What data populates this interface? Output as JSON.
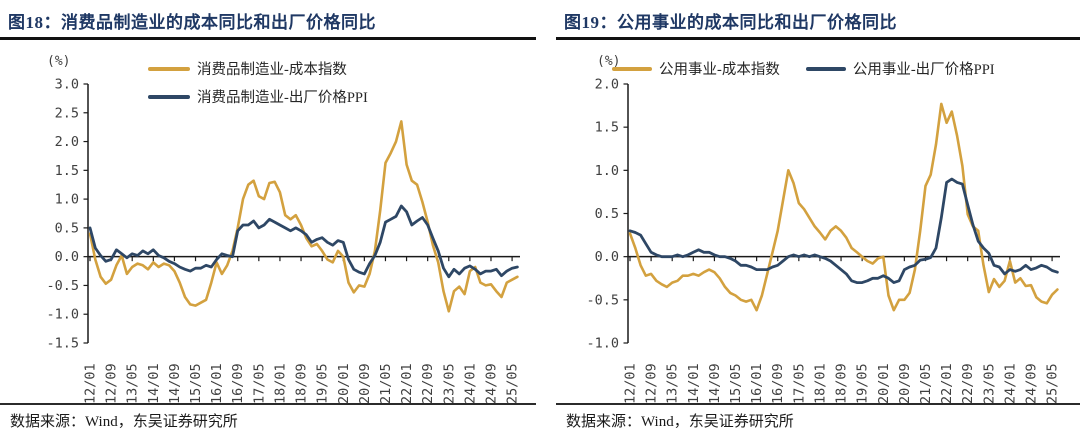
{
  "colors": {
    "gold": "#D3A13F",
    "navy": "#2E4765",
    "title": "#1F3864",
    "axis": "#1a1a1a",
    "tick_text": "#3f3f3f"
  },
  "chart_data": [
    {
      "type": "line",
      "title": "图18：消费品制造业的成本同比和出厂价格同比",
      "percent_label": "(%)",
      "source": "数据来源：Wind，东吴证券研究所",
      "ylim": [
        -1.5,
        3.0
      ],
      "y_tick_step": 0.5,
      "y_ticks": [
        "3.0",
        "2.5",
        "2.0",
        "1.5",
        "1.0",
        "0.5",
        "0.0",
        "-0.5",
        "-1.0",
        "-1.5"
      ],
      "x_tick_labels": [
        "12/01",
        "12/09",
        "13/05",
        "14/01",
        "14/09",
        "15/05",
        "16/01",
        "16/09",
        "17/05",
        "18/01",
        "18/09",
        "19/05",
        "20/01",
        "20/09",
        "21/05",
        "22/01",
        "22/09",
        "23/05",
        "24/01",
        "24/09",
        "25/05"
      ],
      "x_start": "12/01",
      "x_step_months": 2,
      "x_months_span": 163,
      "grid": false,
      "legend_position": "top-center-stacked",
      "series": [
        {
          "name": "消费品制造业-成本指数",
          "color_key": "gold",
          "values": [
            0.4,
            -0.05,
            -0.35,
            -0.47,
            -0.4,
            -0.15,
            0.02,
            -0.3,
            -0.18,
            -0.12,
            -0.15,
            -0.22,
            -0.1,
            -0.18,
            -0.12,
            -0.15,
            -0.25,
            -0.45,
            -0.7,
            -0.83,
            -0.85,
            -0.8,
            -0.75,
            -0.45,
            -0.1,
            -0.3,
            -0.15,
            0.1,
            0.5,
            1.0,
            1.25,
            1.32,
            1.05,
            1.0,
            1.28,
            1.3,
            1.12,
            0.72,
            0.65,
            0.72,
            0.55,
            0.32,
            0.18,
            0.22,
            0.1,
            -0.05,
            -0.1,
            0.1,
            0.0,
            -0.45,
            -0.62,
            -0.5,
            -0.52,
            -0.3,
            0.1,
            0.8,
            1.63,
            1.8,
            2.0,
            2.35,
            1.6,
            1.32,
            1.25,
            0.95,
            0.6,
            0.2,
            -0.1,
            -0.6,
            -0.95,
            -0.6,
            -0.52,
            -0.65,
            -0.25,
            -0.18,
            -0.45,
            -0.5,
            -0.48,
            -0.6,
            -0.7,
            -0.45,
            -0.4,
            -0.35
          ]
        },
        {
          "name": "消费品制造业-出厂价格PPI",
          "color_key": "navy",
          "values": [
            0.5,
            0.15,
            0.02,
            -0.08,
            -0.05,
            0.12,
            0.05,
            -0.02,
            0.05,
            0.02,
            0.1,
            0.05,
            0.12,
            0.02,
            -0.02,
            -0.08,
            -0.12,
            -0.18,
            -0.22,
            -0.25,
            -0.2,
            -0.2,
            -0.15,
            -0.18,
            -0.05,
            0.05,
            0.02,
            0.0,
            0.45,
            0.55,
            0.55,
            0.62,
            0.5,
            0.55,
            0.65,
            0.6,
            0.55,
            0.5,
            0.45,
            0.5,
            0.45,
            0.38,
            0.25,
            0.3,
            0.33,
            0.25,
            0.2,
            0.28,
            0.25,
            -0.05,
            -0.22,
            -0.27,
            -0.3,
            -0.12,
            0.02,
            0.25,
            0.6,
            0.65,
            0.7,
            0.88,
            0.78,
            0.55,
            0.62,
            0.68,
            0.55,
            0.32,
            0.1,
            -0.2,
            -0.35,
            -0.22,
            -0.3,
            -0.2,
            -0.16,
            -0.22,
            -0.3,
            -0.25,
            -0.25,
            -0.22,
            -0.33,
            -0.25,
            -0.2,
            -0.18
          ]
        }
      ]
    },
    {
      "type": "line",
      "title": "图19：公用事业的成本同比和出厂价格同比",
      "percent_label": "(%)",
      "source": "数据来源：Wind，东吴证券研究所",
      "ylim": [
        -1.0,
        2.0
      ],
      "y_tick_step": 0.5,
      "y_ticks": [
        "2.0",
        "1.5",
        "1.0",
        "0.5",
        "0.0",
        "-0.5",
        "-1.0"
      ],
      "x_tick_labels": [
        "12/01",
        "12/09",
        "13/05",
        "14/01",
        "14/09",
        "15/05",
        "16/01",
        "16/09",
        "17/05",
        "18/01",
        "18/09",
        "19/05",
        "20/01",
        "20/09",
        "21/05",
        "22/01",
        "22/09",
        "23/05",
        "24/01",
        "24/09",
        "25/05"
      ],
      "x_start": "12/01",
      "x_step_months": 2,
      "x_months_span": 163,
      "grid": false,
      "legend_position": "top-row",
      "series": [
        {
          "name": "公用事业-成本指数",
          "color_key": "gold",
          "values": [
            0.27,
            0.1,
            -0.1,
            -0.22,
            -0.2,
            -0.28,
            -0.32,
            -0.35,
            -0.3,
            -0.28,
            -0.22,
            -0.22,
            -0.2,
            -0.22,
            -0.18,
            -0.15,
            -0.18,
            -0.25,
            -0.35,
            -0.42,
            -0.45,
            -0.5,
            -0.52,
            -0.5,
            -0.62,
            -0.45,
            -0.2,
            0.05,
            0.3,
            0.65,
            1.0,
            0.85,
            0.62,
            0.55,
            0.45,
            0.35,
            0.28,
            0.2,
            0.3,
            0.35,
            0.3,
            0.22,
            0.1,
            0.05,
            0.0,
            -0.05,
            -0.08,
            -0.02,
            0.0,
            -0.45,
            -0.62,
            -0.5,
            -0.5,
            -0.42,
            -0.15,
            0.3,
            0.82,
            0.95,
            1.3,
            1.77,
            1.55,
            1.68,
            1.4,
            1.05,
            0.49,
            0.35,
            0.3,
            -0.1,
            -0.41,
            -0.26,
            -0.35,
            -0.28,
            -0.05,
            -0.3,
            -0.25,
            -0.34,
            -0.33,
            -0.47,
            -0.52,
            -0.54,
            -0.44,
            -0.38
          ]
        },
        {
          "name": "公用事业-出厂价格PPI",
          "color_key": "navy",
          "values": [
            0.3,
            0.28,
            0.25,
            0.15,
            0.05,
            0.02,
            0.0,
            0.0,
            0.0,
            0.02,
            0.0,
            0.02,
            0.05,
            0.08,
            0.05,
            0.05,
            0.02,
            0.0,
            0.0,
            -0.02,
            -0.05,
            -0.1,
            -0.1,
            -0.12,
            -0.15,
            -0.15,
            -0.15,
            -0.12,
            -0.1,
            -0.05,
            0.0,
            0.02,
            0.0,
            0.02,
            0.0,
            0.02,
            0.0,
            -0.02,
            -0.05,
            -0.1,
            -0.15,
            -0.2,
            -0.28,
            -0.3,
            -0.3,
            -0.28,
            -0.25,
            -0.25,
            -0.22,
            -0.25,
            -0.3,
            -0.28,
            -0.15,
            -0.12,
            -0.1,
            -0.04,
            -0.03,
            -0.01,
            0.1,
            0.45,
            0.86,
            0.9,
            0.86,
            0.84,
            0.6,
            0.37,
            0.18,
            0.1,
            0.04,
            -0.1,
            -0.12,
            -0.2,
            -0.15,
            -0.17,
            -0.15,
            -0.1,
            -0.15,
            -0.13,
            -0.1,
            -0.12,
            -0.16,
            -0.18
          ]
        }
      ]
    }
  ]
}
